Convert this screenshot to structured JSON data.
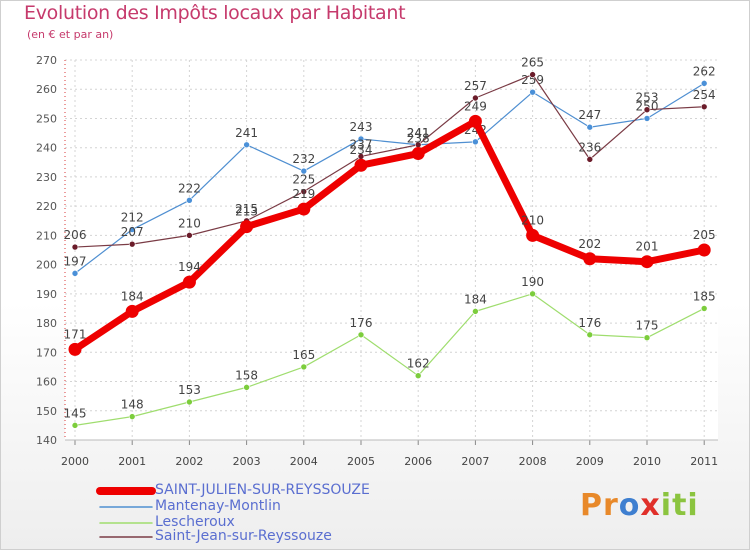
{
  "title": "Evolution des Impôts locaux par Habitant",
  "subtitle": "(en € et par an)",
  "logo": {
    "p": "Pr",
    "o": "o",
    "x": "x",
    "iti": "iti"
  },
  "chart_data": {
    "type": "line",
    "x": [
      "2000",
      "2001",
      "2002",
      "2003",
      "2004",
      "2005",
      "2006",
      "2007",
      "2008",
      "2009",
      "2010",
      "2011"
    ],
    "ylim": [
      140,
      270
    ],
    "yticks": [
      140,
      150,
      160,
      170,
      180,
      190,
      200,
      210,
      220,
      230,
      240,
      250,
      260,
      270
    ],
    "grid": true,
    "series": [
      {
        "name": "Mantenay-Montlin",
        "color": "#4f8fd1",
        "point": "#4a90d8",
        "values": [
          197,
          212,
          222,
          241,
          232,
          243,
          241,
          242,
          259,
          247,
          250,
          262
        ],
        "labels": [
          "197",
          "212",
          "222",
          "241",
          "232",
          "243",
          "241",
          "242",
          "259",
          "247",
          "250",
          "262"
        ]
      },
      {
        "name": "Lescheroux",
        "color": "#9fdd6e",
        "point": "#7ccd3c",
        "values": [
          145,
          148,
          153,
          158,
          165,
          176,
          162,
          184,
          190,
          176,
          175,
          185
        ],
        "labels": [
          "145",
          "148",
          "153",
          "158",
          "165",
          "176",
          "162",
          "184",
          "190",
          "176",
          "175",
          "185"
        ]
      },
      {
        "name": "Saint-Jean-sur-Reyssouze",
        "color": "#7a3b45",
        "point": "#6b1c2a",
        "values": [
          206,
          207,
          210,
          215,
          225,
          237,
          241,
          257,
          265,
          236,
          253,
          254
        ],
        "labels": [
          "206",
          "207",
          "210",
          "215",
          "225",
          "237",
          "241",
          "257",
          "265",
          "236",
          "253",
          "254"
        ]
      },
      {
        "name": "SAINT-JULIEN-SUR-REYSSOUZE",
        "color": "#ee0000",
        "point": "#ee0000",
        "values": [
          171,
          184,
          194,
          213,
          219,
          234,
          238,
          249,
          210,
          202,
          201,
          205
        ],
        "labels": [
          "171",
          "184",
          "194",
          "213",
          "219",
          "234",
          "238",
          "249",
          "210",
          "202",
          "201",
          "205"
        ]
      }
    ],
    "legend": [
      "SAINT-JULIEN-SUR-REYSSOUZE",
      "Mantenay-Montlin",
      "Lescheroux",
      "Saint-Jean-sur-Reyssouze"
    ],
    "legend_position": "bottom-left"
  }
}
